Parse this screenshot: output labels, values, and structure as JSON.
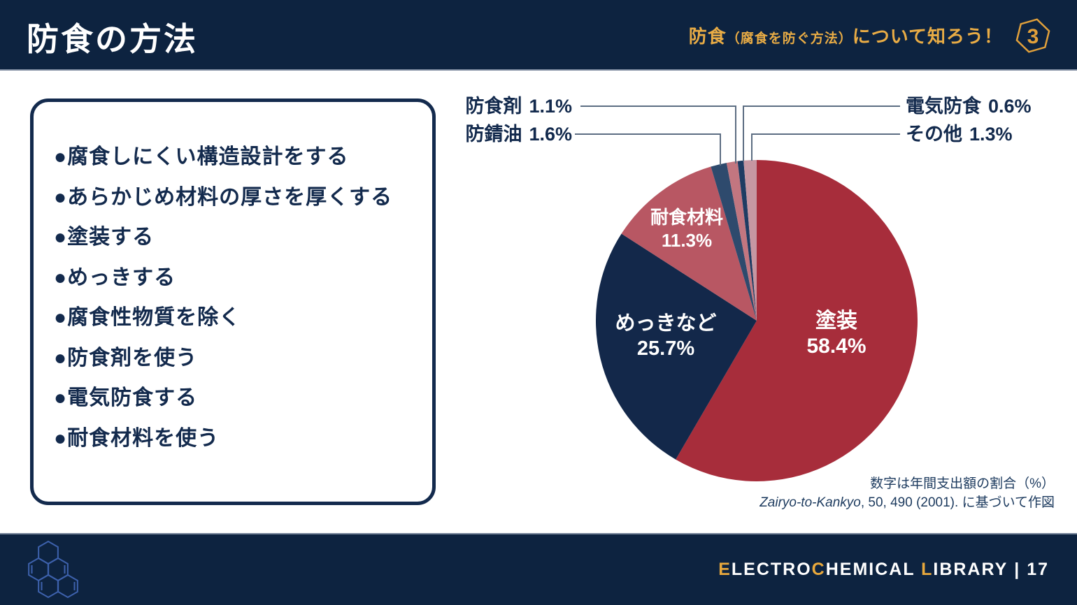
{
  "header": {
    "title": "防食の方法",
    "topic_prefix": "防食",
    "topic_paren": "（腐食を防ぐ方法）",
    "topic_suffix": "について知ろう！",
    "badge_number": "3"
  },
  "box": {
    "items": [
      "●腐食しにくい構造設計をする",
      "●あらかじめ材料の厚さを厚くする",
      "●塗装する",
      "●めっきする",
      "●腐食性物質を除く",
      "●防食剤を使う",
      "●電気防食する",
      "●耐食材料を使う"
    ]
  },
  "chart_data": {
    "type": "pie",
    "unit": "%",
    "start_angle_deg": 0,
    "direction": "clockwise",
    "slices": [
      {
        "label": "塗装",
        "value": 58.4,
        "display": "58.4%",
        "color": "#a72d3b"
      },
      {
        "label": "めっきなど",
        "value": 25.7,
        "display": "25.7%",
        "color": "#13284a"
      },
      {
        "label": "耐食材料",
        "value": 11.3,
        "display": "11.3%",
        "color": "#b85763"
      },
      {
        "label": "防錆油",
        "value": 1.6,
        "display": "1.6%",
        "color": "#2e4a6d"
      },
      {
        "label": "防食剤",
        "value": 1.1,
        "display": "1.1%",
        "color": "#c27680"
      },
      {
        "label": "電気防食",
        "value": 0.6,
        "display": "0.6%",
        "color": "#1e3c63"
      },
      {
        "label": "その他",
        "value": 1.3,
        "display": "1.3%",
        "color": "#c697a2"
      }
    ],
    "caption": {
      "line1": "数字は年間支出額の割合（%）",
      "source_italic": "Zairyo-to-Kankyo",
      "source_rest": ", 50, 490 (2001). に基づいて作図"
    }
  },
  "footer": {
    "brand_e1": "E",
    "brand_e2": "LECTRO",
    "brand_c1": "C",
    "brand_c2": "HEMICAL ",
    "brand_l1": "L",
    "brand_l2": "IBRARY",
    "separator": " | ",
    "page_number": "17"
  },
  "colors": {
    "navy_bg": "#0d2340",
    "navy_text": "#132a4d",
    "gold_accent": "#e8a83c",
    "leader_line": "#5c6d82",
    "molecule_blue": "#3d61ac",
    "white": "#ffffff"
  }
}
